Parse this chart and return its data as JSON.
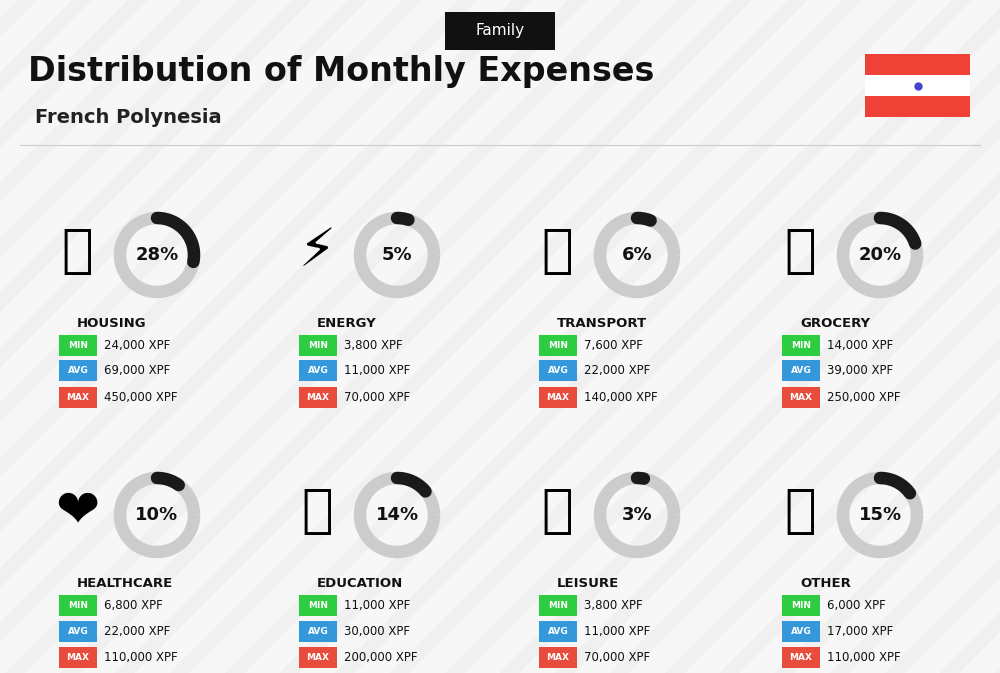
{
  "title": "Distribution of Monthly Expenses",
  "subtitle": "French Polynesia",
  "category_label": "Family",
  "bg_color": "#f0f0f0",
  "categories": [
    {
      "name": "HOUSING",
      "pct": 28,
      "min": "24,000 XPF",
      "avg": "69,000 XPF",
      "max": "450,000 XPF",
      "emoji": "🏛",
      "row": 0,
      "col": 0
    },
    {
      "name": "ENERGY",
      "pct": 5,
      "min": "3,800 XPF",
      "avg": "11,000 XPF",
      "max": "70,000 XPF",
      "emoji": "⚡",
      "row": 0,
      "col": 1
    },
    {
      "name": "TRANSPORT",
      "pct": 6,
      "min": "7,600 XPF",
      "avg": "22,000 XPF",
      "max": "140,000 XPF",
      "emoji": "🚌",
      "row": 0,
      "col": 2
    },
    {
      "name": "GROCERY",
      "pct": 20,
      "min": "14,000 XPF",
      "avg": "39,000 XPF",
      "max": "250,000 XPF",
      "emoji": "🛒",
      "row": 0,
      "col": 3
    },
    {
      "name": "HEALTHCARE",
      "pct": 10,
      "min": "6,800 XPF",
      "avg": "22,000 XPF",
      "max": "110,000 XPF",
      "emoji": "❤",
      "row": 1,
      "col": 0
    },
    {
      "name": "EDUCATION",
      "pct": 14,
      "min": "11,000 XPF",
      "avg": "30,000 XPF",
      "max": "200,000 XPF",
      "emoji": "🎓",
      "row": 1,
      "col": 1
    },
    {
      "name": "LEISURE",
      "pct": 3,
      "min": "3,800 XPF",
      "avg": "11,000 XPF",
      "max": "70,000 XPF",
      "emoji": "🛍",
      "row": 1,
      "col": 2
    },
    {
      "name": "OTHER",
      "pct": 15,
      "min": "6,000 XPF",
      "avg": "17,000 XPF",
      "max": "110,000 XPF",
      "emoji": "💰",
      "row": 1,
      "col": 3
    }
  ],
  "color_min": "#2ecc40",
  "color_avg": "#3498db",
  "color_max": "#e74c3c",
  "color_ring_filled": "#1a1a1a",
  "color_ring_empty": "#cccccc",
  "flag_colors": [
    "#EF4135",
    "#ffffff",
    "#EF4135"
  ]
}
